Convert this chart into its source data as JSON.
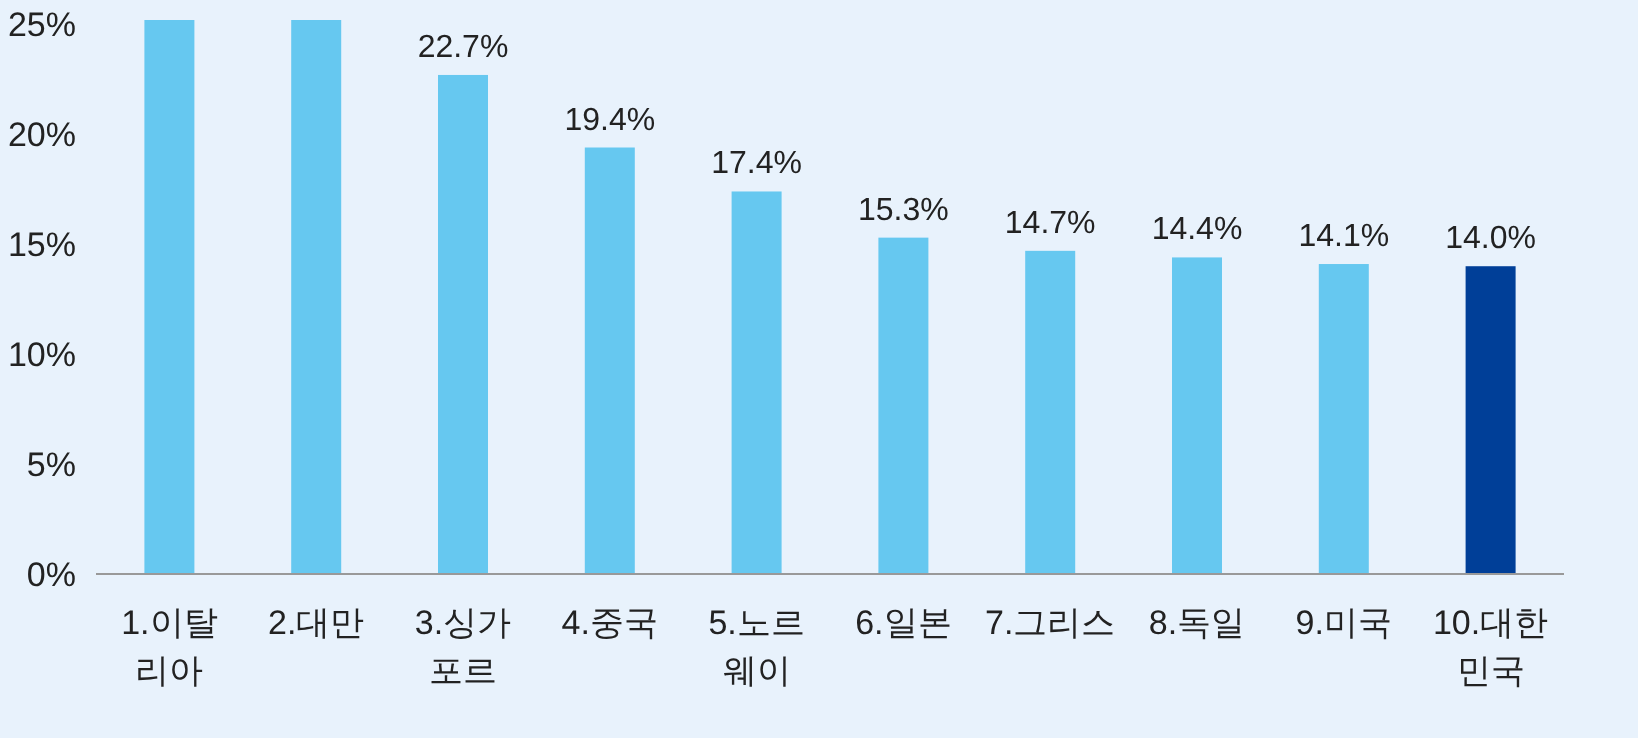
{
  "chart_data": {
    "type": "bar",
    "categories": [
      "1.이탈리아",
      "2.대만",
      "3.싱가포르",
      "4.중국",
      "5.노르웨이",
      "6.일본",
      "7.그리스",
      "8.독일",
      "9.미국",
      "10.대한민국"
    ],
    "values": [
      25.2,
      25.2,
      22.7,
      19.4,
      17.4,
      15.3,
      14.7,
      14.4,
      14.1,
      14.0
    ],
    "colors": [
      "#66c8f0",
      "#66c8f0",
      "#66c8f0",
      "#66c8f0",
      "#66c8f0",
      "#66c8f0",
      "#66c8f0",
      "#66c8f0",
      "#66c8f0",
      "#003f98"
    ],
    "value_labels": [
      null,
      null,
      "22.7%",
      "19.4%",
      "17.4%",
      "15.3%",
      "14.7%",
      "14.4%",
      "14.1%",
      "14.0%"
    ],
    "ylim": [
      0,
      25.2
    ],
    "yticks": [
      {
        "value": 0,
        "label": "0%"
      },
      {
        "value": 5,
        "label": "5%"
      },
      {
        "value": 10,
        "label": "10%"
      },
      {
        "value": 15,
        "label": "15%"
      },
      {
        "value": 20,
        "label": "20%"
      },
      {
        "value": 25,
        "label": "25%"
      }
    ]
  }
}
